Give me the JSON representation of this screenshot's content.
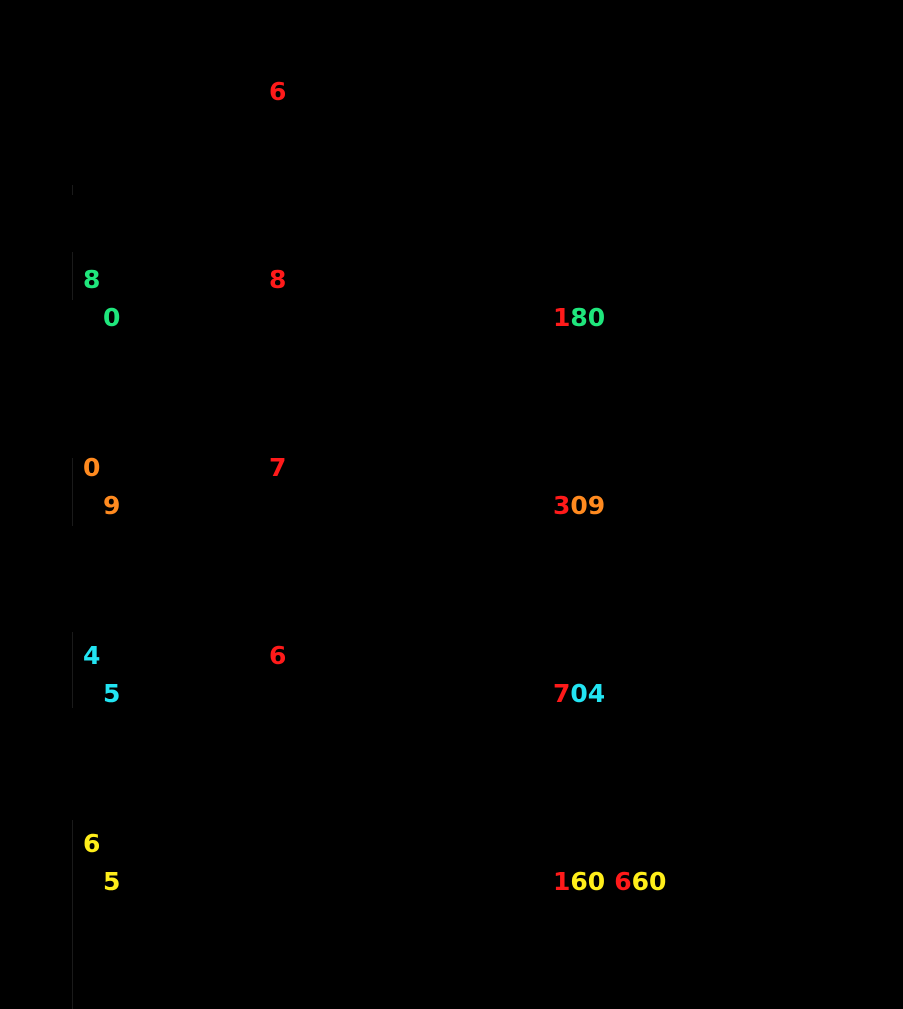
{
  "header": {
    "digit": "6",
    "color": "#ff1a1a"
  },
  "rows": [
    {
      "color": "#1fe67c",
      "a": "8",
      "b": "8",
      "c": "0",
      "d": [
        [
          {
            "text": "1",
            "color": "#ff1a1a"
          },
          {
            "text": "80",
            "color": "#1fe67c"
          }
        ]
      ]
    },
    {
      "color": "#ff8a1f",
      "a": "0",
      "b": "7",
      "c": "9",
      "d": [
        [
          {
            "text": "3",
            "color": "#ff1a1a"
          },
          {
            "text": "09",
            "color": "#ff8a1f"
          }
        ]
      ]
    },
    {
      "color": "#22e4f2",
      "a": "4",
      "b": "6",
      "c": "5",
      "d": [
        [
          {
            "text": "7",
            "color": "#ff1a1a"
          },
          {
            "text": "04",
            "color": "#22e4f2"
          }
        ]
      ]
    },
    {
      "color": "#ffee1a",
      "a": "6",
      "c": "5",
      "d": [
        [
          {
            "text": "1",
            "color": "#ff1a1a"
          },
          {
            "text": "60",
            "color": "#ffee1a"
          }
        ],
        [
          {
            "text": "6",
            "color": "#ff1a1a"
          },
          {
            "text": "60",
            "color": "#ffee1a"
          }
        ]
      ]
    }
  ],
  "b_color": "#ff1a1a"
}
